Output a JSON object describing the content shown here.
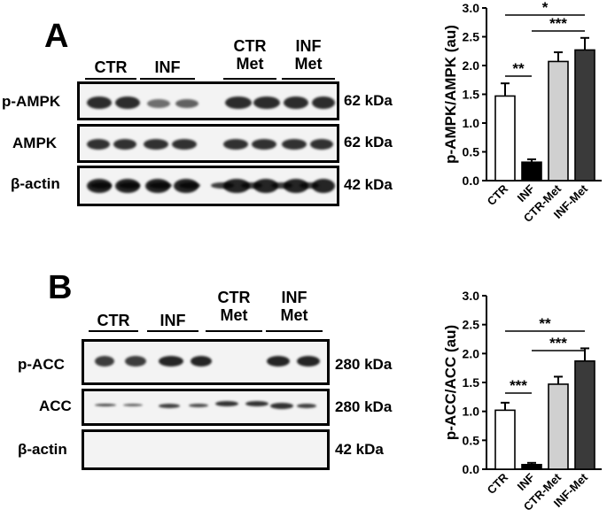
{
  "panelA": {
    "letter": "A",
    "groups": [
      {
        "label": "CTR"
      },
      {
        "label": "INF"
      },
      {
        "label": "CTR\nMet"
      },
      {
        "label": "INF\nMet"
      }
    ],
    "blots": [
      {
        "label": "p-AMPK",
        "kda": "62 kDa"
      },
      {
        "label": "AMPK",
        "kda": "62 kDa"
      },
      {
        "label": "β-actin",
        "kda": "42 kDa"
      }
    ]
  },
  "panelB": {
    "letter": "B",
    "groups": [
      {
        "label": "CTR"
      },
      {
        "label": "INF"
      },
      {
        "label": "CTR\nMet"
      },
      {
        "label": "INF\nMet"
      }
    ],
    "blots": [
      {
        "label": "p-ACC",
        "kda": "280 kDa"
      },
      {
        "label": "ACC",
        "kda": "280 kDa"
      },
      {
        "label": "β-actin",
        "kda": "42 kDa"
      }
    ]
  },
  "chart_data": [
    {
      "type": "bar",
      "categories": [
        "CTR",
        "INF",
        "CTR-Met",
        "INF-Met"
      ],
      "values": [
        1.47,
        0.32,
        2.07,
        2.27
      ],
      "errors": [
        0.22,
        0.05,
        0.16,
        0.21
      ],
      "colors": [
        "#ffffff",
        "#000000",
        "#d0d0d0",
        "#3a3a3a"
      ],
      "title": "",
      "xlabel": "",
      "ylabel": "p-AMPK/AMPK (au)",
      "ylim": [
        0,
        3.0
      ],
      "yticks": [
        "0.0",
        "0.5",
        "1.0",
        "1.5",
        "2.0",
        "2.5",
        "3.0"
      ],
      "significance": [
        {
          "from": 0,
          "to": 1,
          "label": "**"
        },
        {
          "from": 0,
          "to": 3,
          "label": "*"
        },
        {
          "from": 1,
          "to": 3,
          "label": "***"
        }
      ]
    },
    {
      "type": "bar",
      "categories": [
        "CTR",
        "INF",
        "CTR-Met",
        "INF-Met"
      ],
      "values": [
        1.02,
        0.08,
        1.47,
        1.87
      ],
      "errors": [
        0.13,
        0.03,
        0.13,
        0.22
      ],
      "colors": [
        "#ffffff",
        "#000000",
        "#d0d0d0",
        "#3a3a3a"
      ],
      "title": "",
      "xlabel": "",
      "ylabel": "p-ACC/ACC (au)",
      "ylim": [
        0,
        3.0
      ],
      "yticks": [
        "0.0",
        "0.5",
        "1.0",
        "1.5",
        "2.0",
        "2.5",
        "3.0"
      ],
      "significance": [
        {
          "from": 0,
          "to": 1,
          "label": "***"
        },
        {
          "from": 0,
          "to": 3,
          "label": "**"
        },
        {
          "from": 1,
          "to": 3,
          "label": "***"
        }
      ]
    }
  ]
}
